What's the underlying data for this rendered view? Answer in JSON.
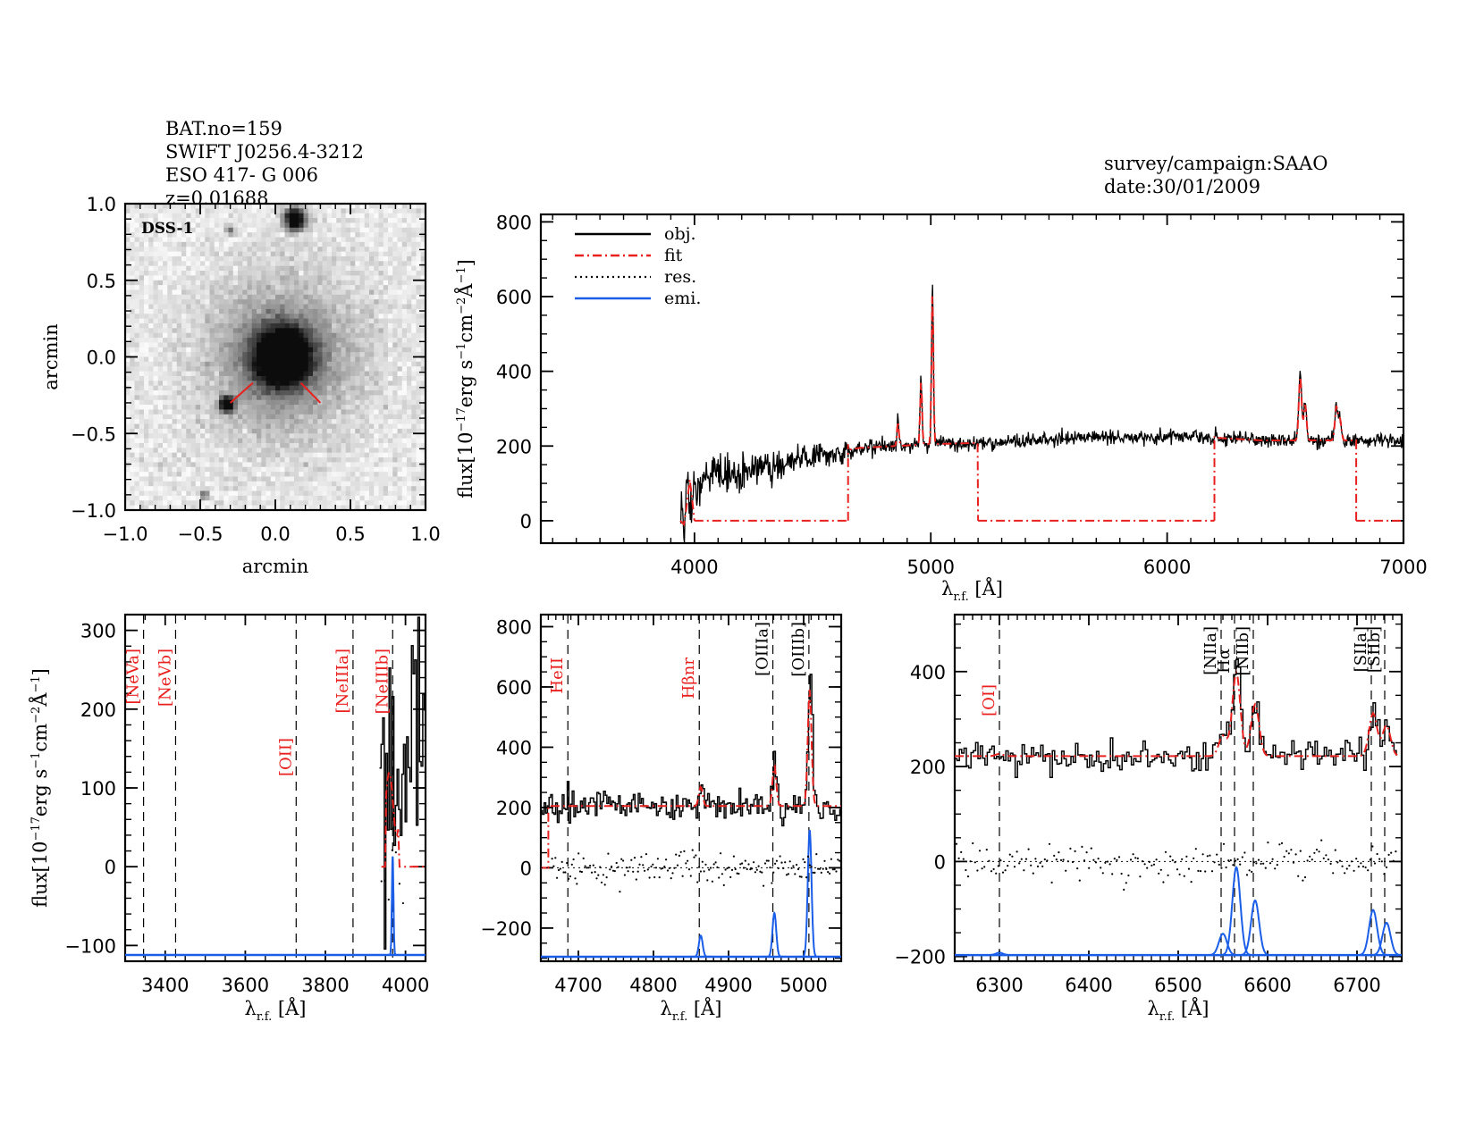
{
  "header": {
    "left_lines": [
      "BAT.no=159",
      "SWIFT J0256.4-3212",
      "ESO 417- G 006",
      "z=0.01688"
    ],
    "right_lines": [
      "survey/campaign:SAAO",
      "date:30/01/2009"
    ]
  },
  "colors": {
    "object": "#000000",
    "fit": "#e8211f",
    "residual": "#000000",
    "emission": "#1a5ee8",
    "marker_line": "#000000",
    "label_red": "#e8211f",
    "label_black": "#000000"
  },
  "chart_data": [
    {
      "id": "image-panel",
      "type": "heatmap",
      "title": "DSS-1",
      "xlabel": "arcmin",
      "ylabel": "arcmin",
      "xlim": [
        -1.0,
        1.0
      ],
      "ylim": [
        -1.0,
        1.0
      ],
      "xticks": [
        "-1.0",
        "-0.5",
        "0.0",
        "0.5",
        "1.0"
      ],
      "yticks": [
        "-1.0",
        "-0.5",
        "0.0",
        "0.5",
        "1.0"
      ],
      "sources": [
        {
          "name": "galaxy",
          "x": 0.05,
          "y": 0.0,
          "sigma": 0.13,
          "halo_sigma": 0.35,
          "peak": 1.0
        },
        {
          "name": "star-top",
          "x": 0.13,
          "y": 0.9,
          "sigma": 0.05,
          "peak": 1.0
        },
        {
          "name": "star-left",
          "x": -0.32,
          "y": -0.31,
          "sigma": 0.035,
          "peak": 0.95
        },
        {
          "name": "star-faint-1",
          "x": -0.47,
          "y": -0.9,
          "sigma": 0.02,
          "peak": 0.45
        },
        {
          "name": "star-faint-2",
          "x": -0.3,
          "y": 0.82,
          "sigma": 0.02,
          "peak": 0.35
        }
      ],
      "markers": [
        {
          "x1": -0.3,
          "y1": -0.3,
          "x2": -0.15,
          "y2": -0.17
        },
        {
          "x1": 0.17,
          "y1": -0.17,
          "x2": 0.3,
          "y2": -0.3
        }
      ]
    },
    {
      "id": "full-spectrum",
      "type": "line",
      "xlabel": "λr.f. [Å]",
      "ylabel": "flux[10^-17 erg s^-1 cm^-2 Å^-1]",
      "xlim": [
        3350,
        7000
      ],
      "ylim": [
        -60,
        820
      ],
      "xticks": [
        4000,
        5000,
        6000,
        7000
      ],
      "yticks": [
        0,
        200,
        400,
        600,
        800
      ],
      "legend": {
        "placement": "top-left",
        "entries": [
          {
            "label": "obj.",
            "style": "solid-black"
          },
          {
            "label": "fit",
            "style": "dashdot-red"
          },
          {
            "label": "res.",
            "style": "dotted-black"
          },
          {
            "label": "emi.",
            "style": "solid-blue"
          }
        ]
      },
      "continuum_nodes": [
        [
          3940,
          0
        ],
        [
          4000,
          90
        ],
        [
          4100,
          120
        ],
        [
          4300,
          140
        ],
        [
          4500,
          175
        ],
        [
          4700,
          195
        ],
        [
          5000,
          205
        ],
        [
          5300,
          210
        ],
        [
          5600,
          222
        ],
        [
          5900,
          225
        ],
        [
          6100,
          226
        ],
        [
          6400,
          215
        ],
        [
          6700,
          215
        ],
        [
          7000,
          215
        ]
      ],
      "noise_amplitude": [
        [
          3940,
          70
        ],
        [
          4300,
          45
        ],
        [
          4600,
          30
        ],
        [
          5000,
          20
        ],
        [
          7000,
          18
        ]
      ],
      "emission_lines": [
        {
          "name": "Hβ",
          "center": 4861,
          "amp": 70,
          "sigma": 4
        },
        {
          "name": "[OIII]a",
          "center": 4959,
          "amp": 180,
          "sigma": 4
        },
        {
          "name": "[OIII]b",
          "center": 5007,
          "amp": 430,
          "sigma": 4
        },
        {
          "name": "Hα",
          "center": 6563,
          "amp": 180,
          "sigma": 6
        },
        {
          "name": "[NII]b",
          "center": 6584,
          "amp": 100,
          "sigma": 6
        },
        {
          "name": "[SII]a",
          "center": 6716,
          "amp": 95,
          "sigma": 6
        },
        {
          "name": "[SII]b",
          "center": 6731,
          "amp": 60,
          "sigma": 6
        }
      ],
      "fit_segments": [
        {
          "x": [
            3940,
            3955,
            3965,
            3980,
            3990,
            4000
          ],
          "y": [
            0,
            -10,
            30,
            110,
            60,
            0
          ]
        },
        {
          "x": [
            4000,
            4650
          ],
          "y": [
            0,
            0
          ]
        },
        {
          "x": [
            4650,
            4650,
            5200,
            5200
          ],
          "y": [
            0,
            205,
            195,
            0
          ],
          "follows_data": true
        },
        {
          "x": [
            5200,
            6200
          ],
          "y": [
            0,
            0
          ]
        },
        {
          "x": [
            6200,
            6200,
            6800,
            6800
          ],
          "y": [
            0,
            226,
            215,
            0
          ],
          "follows_data": true
        },
        {
          "x": [
            6800,
            7000
          ],
          "y": [
            0,
            0
          ]
        }
      ]
    },
    {
      "id": "zoom-blue",
      "type": "line",
      "xlabel": "λr.f. [Å]",
      "ylabel": "flux[10^-17 erg s^-1 cm^-2 Å^-1]",
      "xlim": [
        3300,
        4050
      ],
      "ylim": [
        -120,
        320
      ],
      "xticks": [
        3400,
        3600,
        3800,
        4000
      ],
      "yticks": [
        -100,
        0,
        100,
        200,
        300
      ],
      "emission_baseline": -112,
      "lines": [
        {
          "label": "[NeVa]",
          "wavelength": 3346,
          "color": "red"
        },
        {
          "label": "[NeVb]",
          "wavelength": 3426,
          "color": "red"
        },
        {
          "label": "[OII]",
          "wavelength": 3727,
          "color": "red"
        },
        {
          "label": "[NeIIIa]",
          "wavelength": 3869,
          "color": "red"
        },
        {
          "label": "[NeIIIb]",
          "wavelength": 3968,
          "color": "red"
        }
      ],
      "data_start": 3935,
      "continuum_level": 60,
      "noise_amplitude": 110,
      "emission_peaks": [
        {
          "center": 3968,
          "amp": 125,
          "sigma": 2
        }
      ]
    },
    {
      "id": "zoom-hbeta",
      "type": "line",
      "xlabel": "λr.f. [Å]",
      "ylabel": "",
      "xlim": [
        4650,
        5050
      ],
      "ylim": [
        -310,
        840
      ],
      "xticks": [
        4700,
        4800,
        4900,
        5000
      ],
      "yticks": [
        -200,
        0,
        200,
        400,
        600,
        800
      ],
      "emission_baseline": -295,
      "continuum_level": 205,
      "fit_start": 4660,
      "lines": [
        {
          "label": "HeII",
          "wavelength": 4686,
          "color": "red"
        },
        {
          "label": "Hβnr",
          "wavelength": 4861,
          "color": "red"
        },
        {
          "label": "[OIIIa]",
          "wavelength": 4959,
          "color": "black"
        },
        {
          "label": "[OIIIb]",
          "wavelength": 5007,
          "color": "black"
        }
      ],
      "emission_peaks": [
        {
          "center": 4863,
          "amp": 70,
          "sigma": 2.5
        },
        {
          "center": 4961,
          "amp": 145,
          "sigma": 2.5
        },
        {
          "center": 5008,
          "amp": 420,
          "sigma": 2.5
        }
      ]
    },
    {
      "id": "zoom-halpha",
      "type": "line",
      "xlabel": "λr.f. [Å]",
      "ylabel": "",
      "xlim": [
        6250,
        6750
      ],
      "ylim": [
        -210,
        520
      ],
      "xticks": [
        6300,
        6400,
        6500,
        6600,
        6700
      ],
      "yticks": [
        -200,
        0,
        200,
        400
      ],
      "emission_baseline": -197,
      "continuum_level": 225,
      "lines": [
        {
          "label": "[OI]",
          "wavelength": 6300,
          "color": "red"
        },
        {
          "label": "[NIIa]",
          "wavelength": 6548,
          "color": "black"
        },
        {
          "label": "Hα",
          "wavelength": 6563,
          "color": "black"
        },
        {
          "label": "[NIIb]",
          "wavelength": 6584,
          "color": "black"
        },
        {
          "label": "[SIIa]",
          "wavelength": 6716,
          "color": "black"
        },
        {
          "label": "[SIIb]",
          "wavelength": 6731,
          "color": "black"
        }
      ],
      "emission_peaks": [
        {
          "center": 6300,
          "amp": 5,
          "sigma": 4
        },
        {
          "center": 6550,
          "amp": 45,
          "sigma": 4.5
        },
        {
          "center": 6565,
          "amp": 185,
          "sigma": 4.5
        },
        {
          "center": 6586,
          "amp": 115,
          "sigma": 4.5
        },
        {
          "center": 6718,
          "amp": 95,
          "sigma": 4.5
        },
        {
          "center": 6733,
          "amp": 68,
          "sigma": 4.5
        }
      ]
    }
  ]
}
